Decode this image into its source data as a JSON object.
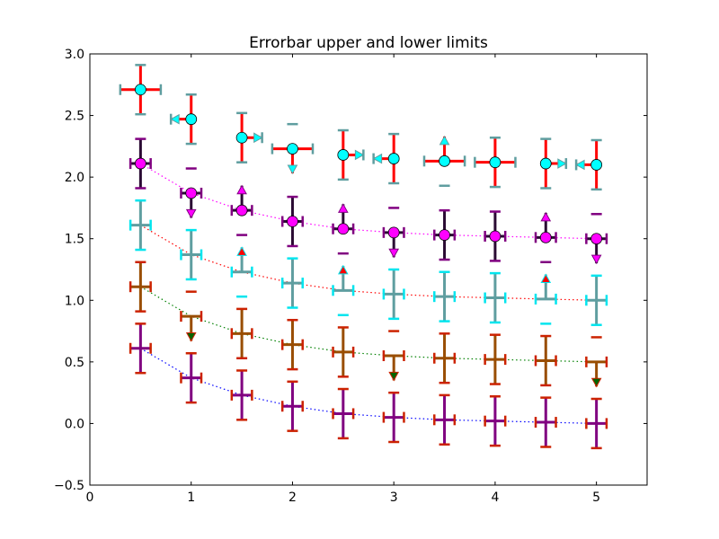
{
  "chart_data": {
    "type": "errorbar",
    "title": "Errorbar upper and lower limits",
    "xlabel": "",
    "ylabel": "",
    "xlim": [
      0,
      5.5
    ],
    "ylim": [
      -0.5,
      3.0
    ],
    "xticks": [
      "0",
      "1",
      "2",
      "3",
      "4",
      "5"
    ],
    "yticks": [
      "−0.5",
      "0.0",
      "0.5",
      "1.0",
      "1.5",
      "2.0",
      "2.5",
      "3.0"
    ],
    "grid": false,
    "legend": "none",
    "x": [
      0.5,
      1.0,
      1.5,
      2.0,
      2.5,
      3.0,
      3.5,
      4.0,
      4.5,
      5.0
    ],
    "series": [
      {
        "line_color": "#0000ff",
        "line_style": "dotted",
        "marker": "none",
        "bar_color": "#800080",
        "cap_color": "#cc2200",
        "y": [
          0.61,
          0.37,
          0.23,
          0.14,
          0.08,
          0.05,
          0.03,
          0.02,
          0.01,
          0.0
        ],
        "xerr": 0.1,
        "yerr": 0.2
      },
      {
        "line_color": "#008000",
        "line_style": "dotted",
        "marker": "none",
        "bar_color": "#994d00",
        "cap_color": "#cc2200",
        "arrow_color": "#006400",
        "y": [
          1.11,
          0.87,
          0.73,
          0.64,
          0.58,
          0.55,
          0.53,
          0.52,
          0.51,
          0.5
        ],
        "xerr": 0.1,
        "yerr": 0.2,
        "uplims": [
          false,
          true,
          false,
          false,
          false,
          true,
          false,
          false,
          false,
          true
        ]
      },
      {
        "line_color": "#ff0000",
        "line_style": "dotted",
        "marker": "none",
        "bar_color": "#5f9ea0",
        "cap_color": "#00e5ee",
        "arrow_color": "#ff0000",
        "y": [
          1.61,
          1.37,
          1.23,
          1.14,
          1.08,
          1.05,
          1.03,
          1.02,
          1.01,
          1.0
        ],
        "xerr": 0.1,
        "yerr": 0.2,
        "lolims": [
          false,
          false,
          true,
          false,
          true,
          false,
          false,
          false,
          true,
          false
        ]
      },
      {
        "line_color": "#ff00ff",
        "line_style": "dotted",
        "marker": "circle",
        "marker_color": "#ff00ff",
        "bar_color": "#2a0a33",
        "cap_color": "#800080",
        "arrow_color": "#ff00ff",
        "y": [
          2.11,
          1.87,
          1.73,
          1.64,
          1.58,
          1.55,
          1.53,
          1.52,
          1.51,
          1.5
        ],
        "xerr": 0.1,
        "yerr": 0.2,
        "uplims": [
          false,
          true,
          false,
          false,
          false,
          true,
          false,
          false,
          false,
          true
        ],
        "lolims": [
          false,
          false,
          true,
          false,
          true,
          false,
          false,
          false,
          true,
          false
        ]
      },
      {
        "line_color": "none",
        "line_style": "none",
        "marker": "circle",
        "marker_color": "#00ffff",
        "bar_color": "#ff0000",
        "cap_color": "#5f9ea0",
        "arrow_color": "#00ffff",
        "y": [
          2.71,
          2.47,
          2.32,
          2.23,
          2.18,
          2.15,
          2.13,
          2.12,
          2.11,
          2.1
        ],
        "xerr": 0.2,
        "yerr": 0.2,
        "xlolims": [
          false,
          false,
          true,
          false,
          true,
          false,
          false,
          false,
          true,
          false
        ],
        "xuplims": [
          false,
          true,
          false,
          false,
          false,
          true,
          false,
          false,
          false,
          true
        ],
        "uplims": [
          false,
          false,
          false,
          true,
          false,
          false,
          false,
          false,
          false,
          false
        ],
        "lolims": [
          false,
          false,
          false,
          false,
          false,
          false,
          true,
          false,
          false,
          false
        ]
      }
    ]
  }
}
